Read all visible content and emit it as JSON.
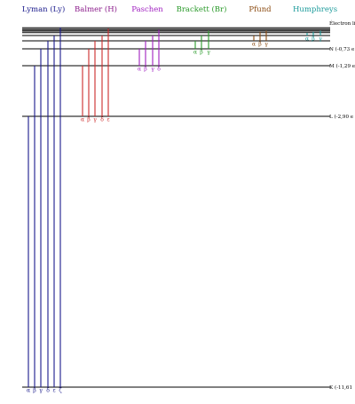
{
  "diagram": {
    "series": [
      {
        "key": "lyman",
        "name": "Lyman (Ly)",
        "color": "#1a1a8c",
        "lower": "K",
        "greek": [
          "α",
          "β",
          "γ",
          "δ",
          "ε",
          "ζ"
        ]
      },
      {
        "key": "balmer",
        "name": "Balmer (H)",
        "color": "#cc2a2a",
        "title_color": "#8a1a8a",
        "lower": "L",
        "greek": [
          "α",
          "β",
          "γ",
          "δ",
          "ε"
        ]
      },
      {
        "key": "paschen",
        "name": "Paschen",
        "color": "#a020c0",
        "lower": "M",
        "greek": [
          "α",
          "β",
          "γ",
          "δ"
        ]
      },
      {
        "key": "brackett",
        "name": "Brackett (Br)",
        "color": "#2a9a2a",
        "lower": "N",
        "greek": [
          "α",
          "β",
          "γ"
        ]
      },
      {
        "key": "pfund",
        "name": "Pfund",
        "color": "#8a4a10",
        "lower": "O",
        "greek": [
          "α",
          "β",
          "γ"
        ]
      },
      {
        "key": "humphreys",
        "name": "Humphreys",
        "color": "#1a9a9a",
        "lower": "P",
        "greek": [
          "α",
          "β",
          "γ"
        ]
      }
    ],
    "levels": [
      {
        "key": "K",
        "label": "K (-11,61"
      },
      {
        "key": "L",
        "label": "L (-2,90 e"
      },
      {
        "key": "M",
        "label": "M (-1,29 e"
      },
      {
        "key": "N",
        "label": "N (-0,73 e"
      },
      {
        "key": "O",
        "label": ""
      },
      {
        "key": "P",
        "label": ""
      }
    ],
    "free_label": "Électron li"
  }
}
